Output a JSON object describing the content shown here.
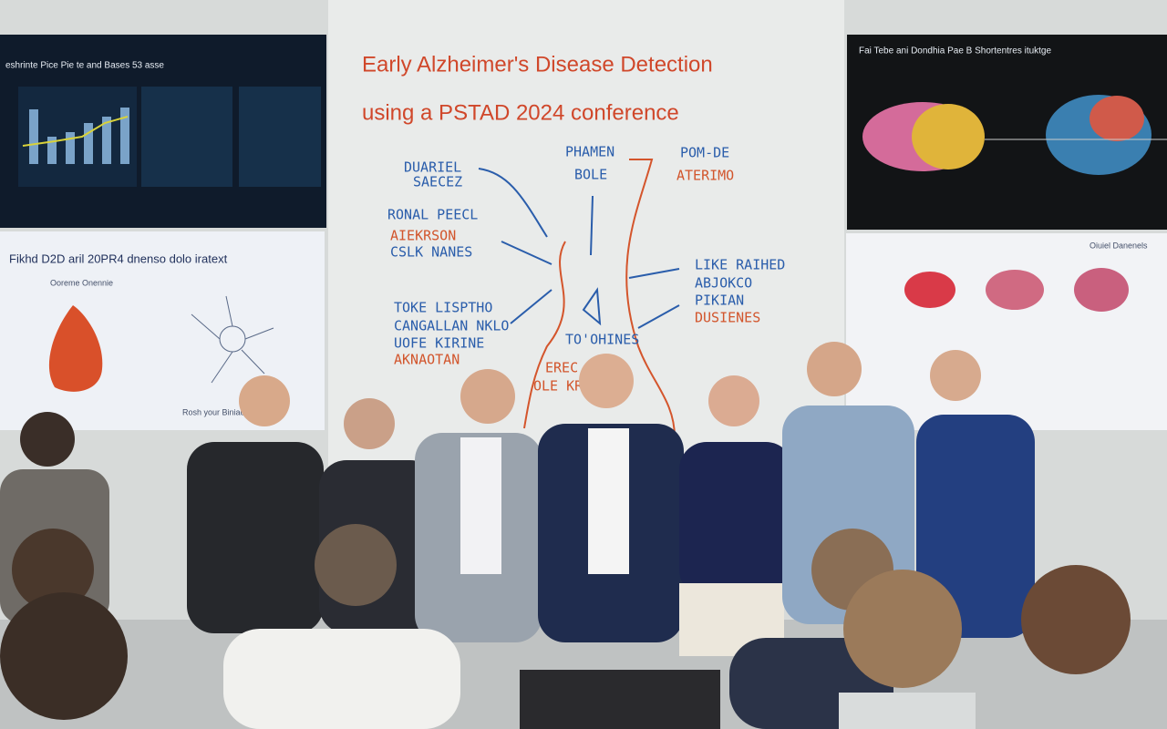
{
  "whiteboard": {
    "title_lines": [
      "Early Alzheimer's Disease Detection",
      "using a PSTAD 2024 conference"
    ],
    "notes": [
      {
        "text": "PHAMEN"
      },
      {
        "text": "BOLE"
      },
      {
        "text": "POM-DE"
      },
      {
        "text": "ATERIMO"
      },
      {
        "text": "DUARIEL"
      },
      {
        "text": "SAECEZ"
      },
      {
        "text": "RONAL PEECL"
      },
      {
        "text": "AIEKRSON"
      },
      {
        "text": "CSLK NANES"
      },
      {
        "text": "LIKE RAIHED"
      },
      {
        "text": "ABJOKCO"
      },
      {
        "text": "PIKIAN"
      },
      {
        "text": "DUSIENES"
      },
      {
        "text": "TOKE LISPTHO"
      },
      {
        "text": "CANGALLAN NKLO"
      },
      {
        "text": "UOFE KIRINE"
      },
      {
        "text": "AKNAOTAN"
      },
      {
        "text": "TO'OHINES"
      },
      {
        "text": "EREC"
      },
      {
        "text": "OLE KRISTA"
      }
    ]
  },
  "screens": [
    {
      "heading": "eshrinte Pice Pie te and Bases 53 asse"
    },
    {
      "heading": "Fikhd D2D aril 20PR4 dnenso dolo iratext",
      "caption": "Ooreme Onennie",
      "footer": "Rosh your Biniacn"
    },
    {
      "heading": "Fai Tebe ani Dondhia Pae B Shortentres ituktge"
    },
    {
      "heading": "Oiuiel Danenels"
    }
  ]
}
